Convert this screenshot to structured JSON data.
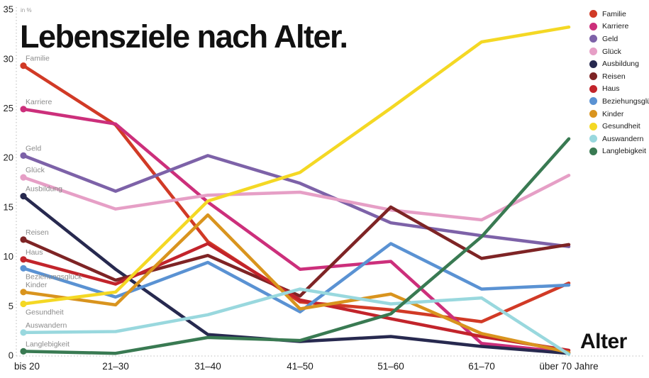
{
  "title": "Lebensziele nach Alter.",
  "x_axis": {
    "title": "Alter"
  },
  "y_axis": {
    "unit_label": "in %",
    "ticks": [
      0,
      5,
      10,
      15,
      20,
      25,
      30,
      35
    ]
  },
  "chart_data": {
    "type": "line",
    "title": "Lebensziele nach Alter.",
    "xlabel": "Alter",
    "ylabel": "in %",
    "ylim": [
      0,
      35
    ],
    "grid": false,
    "legend_position": "top-right",
    "categories": [
      "bis 20",
      "21–30",
      "31–40",
      "41–50",
      "51–60",
      "61–70",
      "über 70 Jahre"
    ],
    "series": [
      {
        "name": "Familie",
        "color": "#d13a26",
        "label_side": "above",
        "values": [
          29.3,
          23.3,
          11.5,
          5.4,
          4.6,
          3.4,
          7.3
        ]
      },
      {
        "name": "Karriere",
        "color": "#cc2f7b",
        "label_side": "above",
        "values": [
          24.9,
          23.4,
          15.5,
          8.7,
          9.5,
          1.2,
          0.3
        ]
      },
      {
        "name": "Geld",
        "color": "#7d62a8",
        "label_side": "above",
        "values": [
          20.2,
          16.6,
          20.2,
          17.4,
          13.4,
          12.1,
          11.0
        ]
      },
      {
        "name": "Glück",
        "color": "#e69fc6",
        "label_side": "above",
        "values": [
          18.0,
          14.8,
          16.2,
          16.5,
          14.7,
          13.7,
          18.2
        ]
      },
      {
        "name": "Ausbildung",
        "color": "#27294f",
        "label_side": "above",
        "values": [
          16.1,
          8.7,
          2.1,
          1.4,
          1.9,
          0.9,
          0.2
        ]
      },
      {
        "name": "Reisen",
        "color": "#7e2425",
        "label_side": "above",
        "values": [
          11.7,
          7.6,
          10.1,
          6.0,
          15.0,
          9.8,
          11.2
        ]
      },
      {
        "name": "Haus",
        "color": "#c2242b",
        "label_side": "above",
        "values": [
          9.7,
          7.2,
          11.3,
          5.6,
          3.7,
          1.9,
          0.5
        ]
      },
      {
        "name": "Beziehungsglück",
        "color": "#5a92d3",
        "label_side": "below",
        "values": [
          8.8,
          5.9,
          9.4,
          4.4,
          11.3,
          6.7,
          7.1
        ]
      },
      {
        "name": "Kinder",
        "color": "#d9941e",
        "label_side": "above",
        "values": [
          6.4,
          5.1,
          14.2,
          4.7,
          6.2,
          2.2,
          0.3
        ]
      },
      {
        "name": "Gesundheit",
        "color": "#f4d824",
        "label_side": "below",
        "values": [
          5.2,
          6.4,
          15.6,
          18.5,
          25.0,
          31.7,
          33.2
        ]
      },
      {
        "name": "Auswandern",
        "color": "#99d8de",
        "label_side": "above",
        "values": [
          2.3,
          2.4,
          4.1,
          6.7,
          5.2,
          5.8,
          0.1
        ]
      },
      {
        "name": "Langlebigkeit",
        "color": "#397a52",
        "label_side": "above",
        "values": [
          0.4,
          0.2,
          1.8,
          1.5,
          4.2,
          12.0,
          21.9
        ]
      }
    ]
  }
}
